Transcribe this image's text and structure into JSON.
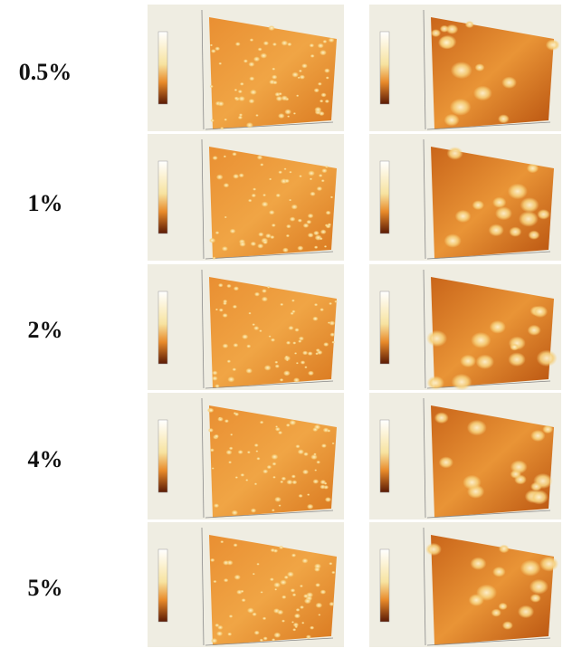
{
  "rows": [
    {
      "label": "0.5%"
    },
    {
      "label": "1%"
    },
    {
      "label": "2%"
    },
    {
      "label": "4%"
    },
    {
      "label": "5%"
    }
  ]
}
